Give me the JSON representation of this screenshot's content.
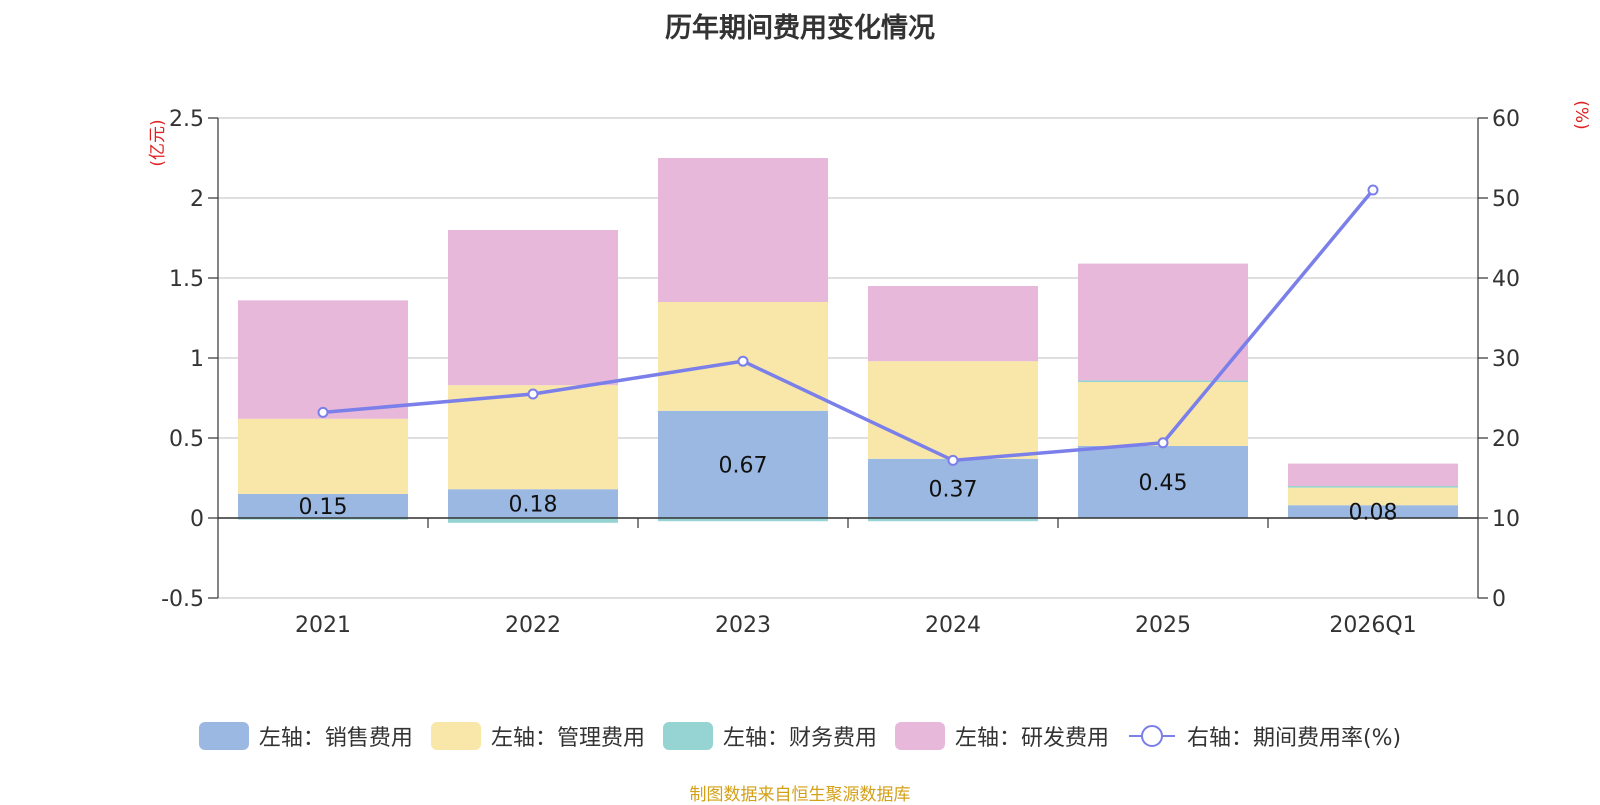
{
  "chart_data": {
    "type": "bar",
    "title": "历年期间费用变化情况",
    "categories": [
      "2021",
      "2022",
      "2023",
      "2024",
      "2025",
      "2026Q1"
    ],
    "y_left_label": "(亿元)",
    "y_right_label": "(%)",
    "y_left_lim": [
      -0.5,
      2.5
    ],
    "y_left_ticks": [
      "-0.5",
      "0",
      "0.5",
      "1",
      "1.5",
      "2",
      "2.5"
    ],
    "y_right_lim": [
      0,
      60
    ],
    "y_right_ticks": [
      "0",
      "10",
      "20",
      "30",
      "40",
      "50",
      "60"
    ],
    "series": [
      {
        "name": "左轴：销售费用",
        "type": "bar",
        "axis": "left",
        "color": "#9BB8E2",
        "values": [
          0.15,
          0.18,
          0.67,
          0.37,
          0.45,
          0.08
        ],
        "labels": [
          "0.15",
          "0.18",
          "0.67",
          "0.37",
          "0.45",
          "0.08"
        ]
      },
      {
        "name": "左轴：管理费用",
        "type": "bar",
        "axis": "left",
        "color": "#F8E7A8",
        "values": [
          0.47,
          0.65,
          0.68,
          0.61,
          0.4,
          0.11
        ]
      },
      {
        "name": "左轴：财务费用",
        "type": "bar",
        "axis": "left",
        "color": "#96D4D4",
        "values": [
          -0.01,
          -0.03,
          -0.02,
          -0.02,
          0.01,
          0.01
        ]
      },
      {
        "name": "左轴：研发费用",
        "type": "bar",
        "axis": "left",
        "color": "#E7B8DA",
        "values": [
          0.74,
          0.97,
          0.9,
          0.47,
          0.73,
          0.14
        ]
      },
      {
        "name": "右轴：期间费用率(%)",
        "type": "line",
        "axis": "right",
        "color": "#7B7FEA",
        "values": [
          23.2,
          25.5,
          29.6,
          17.2,
          19.4,
          51.0
        ]
      }
    ],
    "legend_position": "bottom",
    "grid": true
  },
  "footer": {
    "source": "制图数据来自恒生聚源数据库"
  }
}
